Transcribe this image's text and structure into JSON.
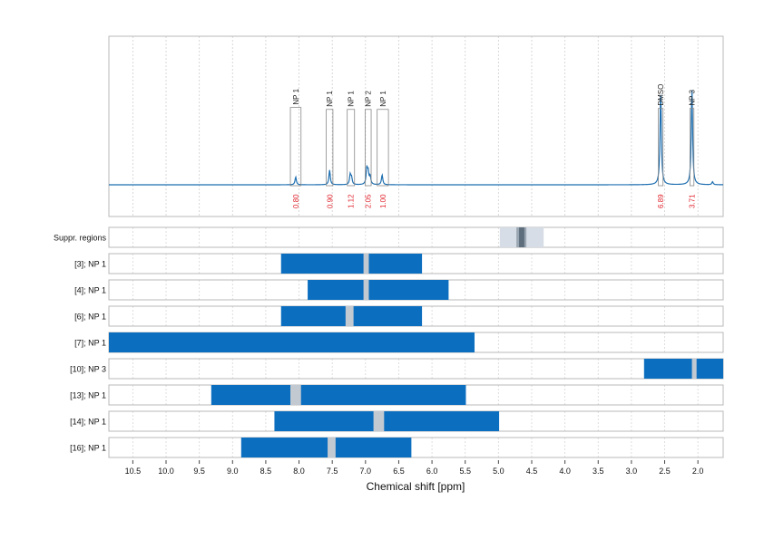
{
  "chart_data": {
    "type": "nmr-spectrum",
    "xlabel": "Chemical shift [ppm]",
    "xlim": [
      10.86,
      1.62
    ],
    "x_ticks": [
      10.5,
      10.0,
      9.5,
      9.0,
      8.5,
      8.0,
      7.5,
      7.0,
      6.5,
      6.0,
      5.5,
      5.0,
      4.5,
      4.0,
      3.5,
      3.0,
      2.5,
      2.0
    ],
    "x_tick_labels": [
      "10.5",
      "10.0",
      "9.5",
      "9.0",
      "8.5",
      "8.0",
      "7.5",
      "7.0",
      "6.5",
      "6.0",
      "5.5",
      "5.0",
      "4.5",
      "4.0",
      "3.5",
      "3.0",
      "2.5",
      "2.0"
    ],
    "grid": true,
    "colors": {
      "spectrum": "#1f6fb0",
      "bar": "#0b6ebf",
      "gap": "#c3c9d1",
      "integral_text": "#e0262f",
      "frame": "#b8b8b8",
      "suppr_light": "#d6dde6",
      "suppr_dark": "#5f6e7c"
    },
    "spectrum_peaks": [
      {
        "ppm": 8.05,
        "height": 0.08
      },
      {
        "ppm": 7.54,
        "height": 0.15
      },
      {
        "ppm": 7.23,
        "height": 0.1
      },
      {
        "ppm": 7.21,
        "height": 0.07
      },
      {
        "ppm": 6.98,
        "height": 0.16
      },
      {
        "ppm": 6.96,
        "height": 0.12
      },
      {
        "ppm": 6.93,
        "height": 0.08
      },
      {
        "ppm": 6.75,
        "height": 0.1
      },
      {
        "ppm": 2.56,
        "height": 0.96
      },
      {
        "ppm": 2.09,
        "height": 0.98
      },
      {
        "ppm": 1.78,
        "height": 0.03
      }
    ],
    "annotations": [
      {
        "label": "NP 1",
        "integral": "0.80",
        "center": 8.05,
        "width": 0.16,
        "box_height": 0.8
      },
      {
        "label": "NP 1",
        "integral": "0.90",
        "center": 7.54,
        "width": 0.1,
        "box_height": 0.78
      },
      {
        "label": "NP 1",
        "integral": "1.12",
        "center": 7.22,
        "width": 0.11,
        "box_height": 0.78
      },
      {
        "label": "NP 2",
        "integral": "2.05",
        "center": 6.96,
        "width": 0.09,
        "box_height": 0.78
      },
      {
        "label": "NP 1",
        "integral": "1.00",
        "center": 6.74,
        "width": 0.17,
        "box_height": 0.78
      },
      {
        "label": "DMSO",
        "integral": "6.89",
        "center": 2.56,
        "width": 0.07,
        "box_height": 0.79
      },
      {
        "label": "NP 3",
        "integral": "3.71",
        "center": 2.09,
        "width": 0.06,
        "box_height": 0.79
      }
    ],
    "suppressed_regions": {
      "label": "Suppr. regions",
      "outer": [
        4.98,
        4.32
      ],
      "inner": [
        4.73,
        4.58
      ],
      "core": [
        4.69,
        4.61
      ]
    },
    "tracks": [
      {
        "label": "[3]; NP 1",
        "range": [
          8.27,
          6.15
        ],
        "gap": [
          7.03,
          6.95
        ]
      },
      {
        "label": "[4]; NP 1",
        "range": [
          7.87,
          5.75
        ],
        "gap": [
          7.03,
          6.95
        ]
      },
      {
        "label": "[6]; NP 1",
        "range": [
          8.27,
          6.15
        ],
        "gap": [
          7.3,
          7.18
        ]
      },
      {
        "label": "[7]; NP 1",
        "range": [
          10.86,
          5.36
        ],
        "gap": null
      },
      {
        "label": "[10]; NP 3",
        "range": [
          2.81,
          1.62
        ],
        "gap": [
          2.09,
          2.02
        ]
      },
      {
        "label": "[13]; NP 1",
        "range": [
          9.32,
          5.49
        ],
        "gap": [
          8.13,
          7.97
        ]
      },
      {
        "label": "[14]; NP 1",
        "range": [
          8.37,
          4.99
        ],
        "gap": [
          6.88,
          6.72
        ]
      },
      {
        "label": "[16]; NP 1",
        "range": [
          8.87,
          6.31
        ],
        "gap": [
          7.57,
          7.45
        ]
      }
    ]
  }
}
